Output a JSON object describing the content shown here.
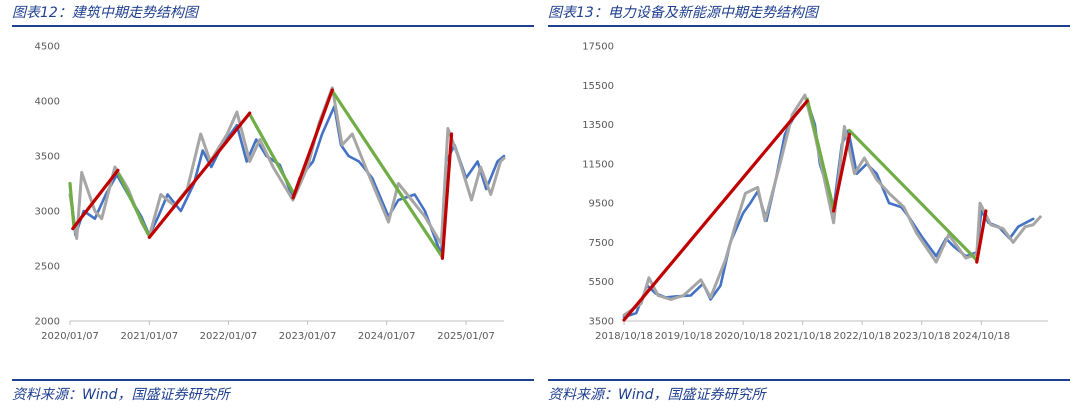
{
  "charts": [
    {
      "title": "图表12：建筑中期走势结构图",
      "source": "资料来源：Wind，国盛证券研究所",
      "colors": {
        "index": "#4472c4",
        "smooth": "#a6a6a6",
        "up": "#c00000",
        "down": "#70ad47"
      },
      "chart_data": {
        "type": "line",
        "title": "",
        "xlabel": "",
        "ylabel": "",
        "ylim": [
          2000,
          4500
        ],
        "yticks": [
          2000,
          2500,
          3000,
          3500,
          4000,
          4500
        ],
        "xlim": [
          "2020-01-07",
          "2025-07-01"
        ],
        "xticks": [
          "2020/01/07",
          "2021/01/07",
          "2022/01/07",
          "2023/01/07",
          "2024/01/07",
          "2025/01/07"
        ],
        "grid": false,
        "legend": "none",
        "series": [
          {
            "role": "index",
            "points": [
              [
                "2020-01-07",
                3230
              ],
              [
                "2020-02-01",
                2780
              ],
              [
                "2020-03-10",
                3000
              ],
              [
                "2020-05-01",
                2930
              ],
              [
                "2020-06-20",
                3150
              ],
              [
                "2020-08-10",
                3330
              ],
              [
                "2020-10-01",
                3150
              ],
              [
                "2020-12-01",
                2950
              ],
              [
                "2021-01-07",
                2780
              ],
              [
                "2021-02-15",
                2940
              ],
              [
                "2021-04-01",
                3150
              ],
              [
                "2021-06-01",
                3000
              ],
              [
                "2021-08-01",
                3250
              ],
              [
                "2021-09-10",
                3550
              ],
              [
                "2021-10-20",
                3400
              ],
              [
                "2021-12-10",
                3600
              ],
              [
                "2022-02-15",
                3780
              ],
              [
                "2022-04-01",
                3450
              ],
              [
                "2022-05-15",
                3650
              ],
              [
                "2022-07-01",
                3500
              ],
              [
                "2022-09-01",
                3420
              ],
              [
                "2022-10-31",
                3120
              ],
              [
                "2022-12-01",
                3300
              ],
              [
                "2023-02-01",
                3450
              ],
              [
                "2023-03-15",
                3700
              ],
              [
                "2023-05-10",
                3950
              ],
              [
                "2023-06-10",
                3600
              ],
              [
                "2023-07-15",
                3500
              ],
              [
                "2023-09-01",
                3450
              ],
              [
                "2023-11-01",
                3300
              ],
              [
                "2024-01-15",
                2950
              ],
              [
                "2024-03-01",
                3100
              ],
              [
                "2024-05-15",
                3150
              ],
              [
                "2024-07-01",
                3000
              ],
              [
                "2024-09-15",
                2600
              ],
              [
                "2024-10-08",
                3450
              ],
              [
                "2024-11-15",
                3600
              ],
              [
                "2025-01-07",
                3300
              ],
              [
                "2025-03-01",
                3450
              ],
              [
                "2025-04-10",
                3200
              ],
              [
                "2025-06-01",
                3450
              ],
              [
                "2025-07-01",
                3500
              ]
            ]
          },
          {
            "role": "smooth",
            "points": [
              [
                "2020-01-07",
                3150
              ],
              [
                "2020-02-07",
                2750
              ],
              [
                "2020-03-01",
                3350
              ],
              [
                "2020-05-01",
                3000
              ],
              [
                "2020-06-01",
                2930
              ],
              [
                "2020-08-01",
                3400
              ],
              [
                "2020-10-01",
                3200
              ],
              [
                "2020-12-01",
                2900
              ],
              [
                "2021-01-07",
                2770
              ],
              [
                "2021-03-01",
                3150
              ],
              [
                "2021-05-01",
                3050
              ],
              [
                "2021-07-01",
                3200
              ],
              [
                "2021-09-01",
                3700
              ],
              [
                "2021-10-15",
                3450
              ],
              [
                "2022-01-01",
                3700
              ],
              [
                "2022-02-15",
                3900
              ],
              [
                "2022-04-15",
                3450
              ],
              [
                "2022-06-01",
                3650
              ],
              [
                "2022-08-01",
                3400
              ],
              [
                "2022-10-31",
                3100
              ],
              [
                "2023-01-07",
                3400
              ],
              [
                "2023-03-01",
                3800
              ],
              [
                "2023-05-01",
                4120
              ],
              [
                "2023-06-15",
                3600
              ],
              [
                "2023-08-01",
                3700
              ],
              [
                "2023-10-01",
                3400
              ],
              [
                "2024-01-15",
                2900
              ],
              [
                "2024-03-01",
                3250
              ],
              [
                "2024-05-01",
                3100
              ],
              [
                "2024-07-01",
                2950
              ],
              [
                "2024-09-15",
                2700
              ],
              [
                "2024-10-15",
                3750
              ],
              [
                "2024-12-01",
                3500
              ],
              [
                "2025-02-01",
                3100
              ],
              [
                "2025-03-15",
                3400
              ],
              [
                "2025-05-01",
                3150
              ],
              [
                "2025-06-15",
                3450
              ],
              [
                "2025-07-01",
                3480
              ]
            ]
          },
          {
            "role": "up",
            "segments": [
              [
                [
                  "2020-01-20",
                  2840
                ],
                [
                  "2020-08-15",
                  3370
                ]
              ],
              [
                [
                  "2021-01-07",
                  2760
                ],
                [
                  "2022-04-15",
                  3890
                ]
              ],
              [
                [
                  "2022-11-01",
                  3120
                ],
                [
                  "2023-05-01",
                  4100
                ]
              ],
              [
                [
                  "2024-09-20",
                  2570
                ],
                [
                  "2024-11-01",
                  3700
                ]
              ]
            ]
          },
          {
            "role": "down",
            "segments": [
              [
                [
                  "2020-01-07",
                  3250
                ],
                [
                  "2020-01-25",
                  2860
                ]
              ],
              [
                [
                  "2020-08-20",
                  3330
                ],
                [
                  "2021-01-07",
                  2770
                ]
              ],
              [
                [
                  "2022-04-15",
                  3880
                ],
                [
                  "2022-11-01",
                  3170
                ]
              ],
              [
                [
                  "2023-05-05",
                  4080
                ],
                [
                  "2024-09-20",
                  2580
                ]
              ]
            ]
          }
        ]
      }
    },
    {
      "title": "图表13：电力设备及新能源中期走势结构图",
      "source": "资料来源：Wind，国盛证券研究所",
      "colors": {
        "index": "#4472c4",
        "smooth": "#a6a6a6",
        "up": "#c00000",
        "down": "#70ad47"
      },
      "chart_data": {
        "type": "line",
        "title": "",
        "xlabel": "",
        "ylabel": "",
        "ylim": [
          3500,
          17500
        ],
        "yticks": [
          3500,
          5500,
          7500,
          9500,
          11500,
          13500,
          15500,
          17500
        ],
        "xlim": [
          "2018-10-18",
          "2025-12-01"
        ],
        "xticks": [
          "2018/10/18",
          "2019/10/18",
          "2020/10/18",
          "2021/10/18",
          "2022/10/18",
          "2023/10/18",
          "2024/10/18"
        ],
        "grid": false,
        "legend": "none",
        "series": [
          {
            "role": "index",
            "points": [
              [
                "2018-10-18",
                3700
              ],
              [
                "2019-01-01",
                3900
              ],
              [
                "2019-03-10",
                5300
              ],
              [
                "2019-05-01",
                4900
              ],
              [
                "2019-07-01",
                4700
              ],
              [
                "2019-09-01",
                4750
              ],
              [
                "2019-12-01",
                4800
              ],
              [
                "2020-02-15",
                5400
              ],
              [
                "2020-04-01",
                4600
              ],
              [
                "2020-06-01",
                5300
              ],
              [
                "2020-08-01",
                7500
              ],
              [
                "2020-10-18",
                9000
              ],
              [
                "2020-12-01",
                9500
              ],
              [
                "2021-01-15",
                10100
              ],
              [
                "2021-03-10",
                8600
              ],
              [
                "2021-05-01",
                10500
              ],
              [
                "2021-07-01",
                13000
              ],
              [
                "2021-09-01",
                14000
              ],
              [
                "2021-11-15",
                14700
              ],
              [
                "2022-01-01",
                13500
              ],
              [
                "2022-02-01",
                11500
              ],
              [
                "2022-04-26",
                9200
              ],
              [
                "2022-06-15",
                12500
              ],
              [
                "2022-07-25",
                13200
              ],
              [
                "2022-09-15",
                11000
              ],
              [
                "2022-11-15",
                11500
              ],
              [
                "2023-01-15",
                11000
              ],
              [
                "2023-04-01",
                9500
              ],
              [
                "2023-06-15",
                9300
              ],
              [
                "2023-08-01",
                8800
              ],
              [
                "2023-10-18",
                7800
              ],
              [
                "2024-01-15",
                6800
              ],
              [
                "2024-03-15",
                7700
              ],
              [
                "2024-05-01",
                7300
              ],
              [
                "2024-07-15",
                6800
              ],
              [
                "2024-09-20",
                7000
              ],
              [
                "2024-10-18",
                9100
              ],
              [
                "2024-12-01",
                8500
              ],
              [
                "2025-02-01",
                8300
              ],
              [
                "2025-04-10",
                7700
              ],
              [
                "2025-06-01",
                8300
              ],
              [
                "2025-09-01",
                8700
              ]
            ]
          },
          {
            "role": "smooth",
            "points": [
              [
                "2018-10-18",
                3800
              ],
              [
                "2019-02-01",
                4400
              ],
              [
                "2019-03-20",
                5700
              ],
              [
                "2019-05-15",
                4800
              ],
              [
                "2019-08-01",
                4600
              ],
              [
                "2019-10-18",
                4800
              ],
              [
                "2020-02-01",
                5600
              ],
              [
                "2020-04-01",
                4700
              ],
              [
                "2020-07-01",
                6600
              ],
              [
                "2020-09-01",
                8400
              ],
              [
                "2020-11-01",
                10000
              ],
              [
                "2021-01-15",
                10300
              ],
              [
                "2021-03-01",
                8600
              ],
              [
                "2021-06-01",
                11500
              ],
              [
                "2021-08-15",
                14000
              ],
              [
                "2021-11-01",
                15000
              ],
              [
                "2022-01-01",
                13000
              ],
              [
                "2022-04-26",
                8500
              ],
              [
                "2022-07-01",
                13400
              ],
              [
                "2022-09-01",
                11000
              ],
              [
                "2022-11-01",
                11800
              ],
              [
                "2023-01-15",
                10700
              ],
              [
                "2023-04-01",
                10000
              ],
              [
                "2023-07-01",
                9300
              ],
              [
                "2023-09-15",
                8000
              ],
              [
                "2024-01-15",
                6500
              ],
              [
                "2024-04-01",
                7900
              ],
              [
                "2024-07-15",
                6700
              ],
              [
                "2024-09-20",
                6900
              ],
              [
                "2024-10-10",
                9500
              ],
              [
                "2024-12-15",
                8400
              ],
              [
                "2025-03-01",
                8200
              ],
              [
                "2025-05-01",
                7500
              ],
              [
                "2025-07-15",
                8300
              ],
              [
                "2025-09-01",
                8400
              ],
              [
                "2025-10-15",
                8800
              ]
            ]
          },
          {
            "role": "up",
            "segments": [
              [
                [
                  "2018-10-18",
                  3550
                ],
                [
                  "2021-11-15",
                  14700
                ]
              ],
              [
                [
                  "2022-04-26",
                  9100
                ],
                [
                  "2022-08-01",
                  13000
                ]
              ],
              [
                [
                  "2024-09-20",
                  6500
                ],
                [
                  "2024-11-15",
                  9100
                ]
              ]
            ]
          },
          {
            "role": "down",
            "segments": [
              [
                [
                  "2021-11-15",
                  14800
                ],
                [
                  "2022-04-26",
                  9200
                ]
              ],
              [
                [
                  "2022-08-01",
                  13200
                ],
                [
                  "2024-09-20",
                  6600
                ]
              ]
            ]
          }
        ]
      }
    }
  ]
}
